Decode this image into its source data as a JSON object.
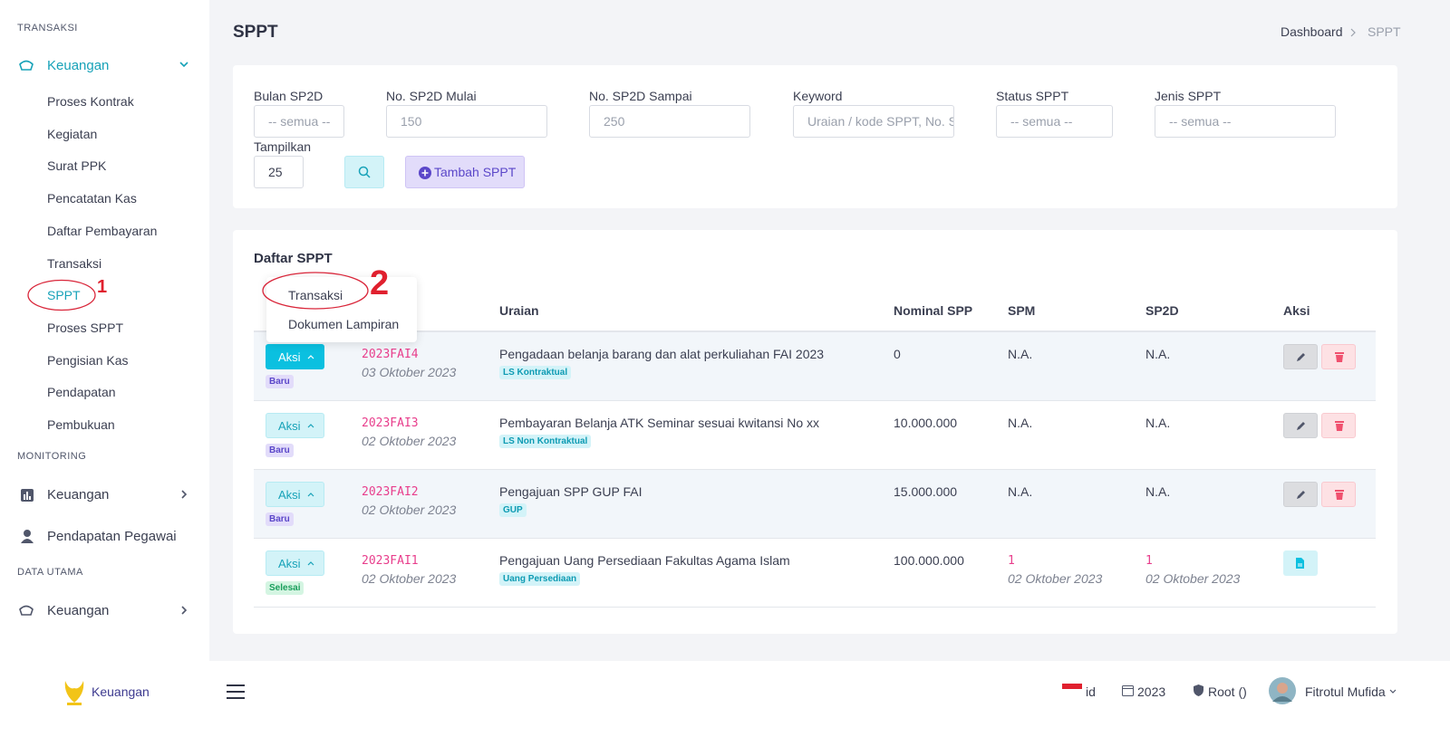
{
  "sidebar": {
    "transaksi_heading": "TRANSAKSI",
    "transaksi_menu": "Keuangan",
    "transaksi_items": [
      "Proses Kontrak",
      "Kegiatan",
      "Surat PPK",
      "Pencatatan Kas",
      "Daftar Pembayaran",
      "Transaksi",
      "SPPT",
      "Proses SPPT",
      "Pengisian Kas",
      "Pendapatan",
      "Pembukuan"
    ],
    "monitoring_heading": "MONITORING",
    "monitoring_items": [
      "Keuangan",
      "Pendapatan Pegawai"
    ],
    "data_utama_heading": "DATA UTAMA",
    "data_utama_items": [
      "Keuangan"
    ]
  },
  "annotations": [
    "1",
    "2"
  ],
  "header": {
    "title": "SPPT",
    "breadcrumb": [
      "Dashboard",
      "SPPT"
    ]
  },
  "filter": {
    "fields": [
      {
        "label": "Bulan SP2D",
        "placeholder": "-- semua --"
      },
      {
        "label": "No. SP2D Mulai",
        "placeholder": "150"
      },
      {
        "label": "No. SP2D Sampai",
        "placeholder": "250"
      },
      {
        "label": "Keyword",
        "placeholder": "Uraian / kode SPPT, No. S"
      },
      {
        "label": "Status SPPT",
        "placeholder": "-- semua --"
      },
      {
        "label": "Jenis SPPT",
        "placeholder": "-- semua --"
      }
    ],
    "tampilkan": {
      "label": "Tampilkan",
      "value": "25"
    },
    "add_button": "Tambah SPPT"
  },
  "list": {
    "title": "Daftar SPPT",
    "columns": [
      "Uraian",
      "Nominal SPP",
      "SPM",
      "SP2D",
      "Aksi"
    ],
    "dropdown": [
      "Transaksi",
      "Dokumen Lampiran"
    ],
    "rows": [
      {
        "action": "Aksi",
        "status": "Baru",
        "code": "2023FAI4",
        "date": "03 Oktober 2023",
        "description": "Pengadaan belanja barang dan alat perkuliahan FAI 2023",
        "tag": "LS Kontraktual",
        "nominal": "0",
        "spm": "N.A.",
        "sp2d": "N.A."
      },
      {
        "action": "Aksi",
        "status": "Baru",
        "code": "2023FAI3",
        "date": "02 Oktober 2023",
        "description": "Pembayaran Belanja ATK Seminar sesuai kwitansi No xx",
        "tag": "LS Non Kontraktual",
        "nominal": "10.000.000",
        "spm": "N.A.",
        "sp2d": "N.A."
      },
      {
        "action": "Aksi",
        "status": "Baru",
        "code": "2023FAI2",
        "date": "02 Oktober 2023",
        "description": "Pengajuan SPP GUP FAI",
        "tag": "GUP",
        "nominal": "15.000.000",
        "spm": "N.A.",
        "sp2d": "N.A."
      },
      {
        "action": "Aksi",
        "status": "Selesai",
        "code": "2023FAI1",
        "date": "02 Oktober 2023",
        "description": "Pengajuan Uang Persediaan Fakultas Agama Islam",
        "tag": "Uang Persediaan",
        "nominal": "100.000.000",
        "spm": "1",
        "spm_date": "02 Oktober 2023",
        "sp2d": "1",
        "sp2d_date": "02 Oktober 2023"
      }
    ]
  },
  "footer": {
    "app": "Keuangan",
    "lang": "id",
    "year": "2023",
    "role": "Root ()",
    "user": "Fitrotul Mufida"
  }
}
